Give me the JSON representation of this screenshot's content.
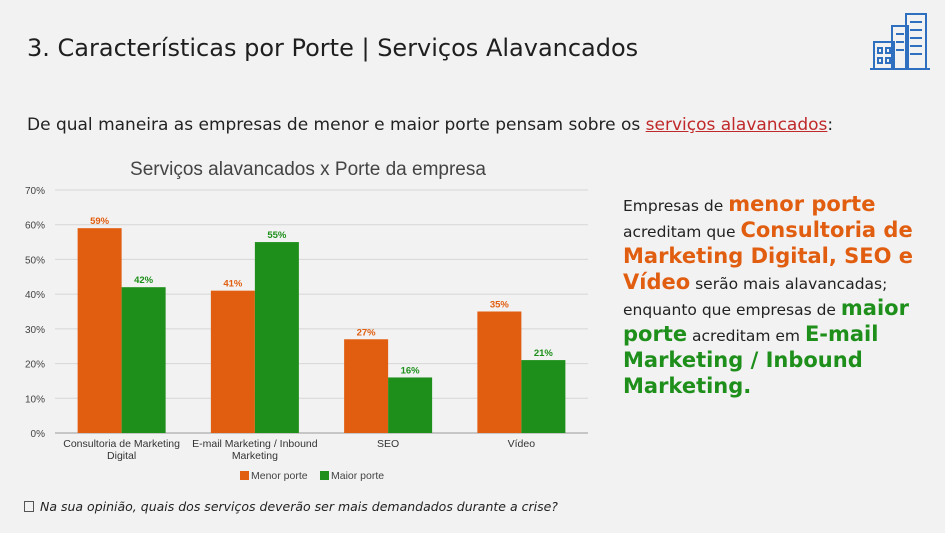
{
  "header": {
    "title": "3. Características por Porte | Serviços Alavancados"
  },
  "question": {
    "prefix": "De qual maneira as empresas de menor e maior porte pensam sobre os ",
    "highlight": "serviços alavancados",
    "suffix": ":"
  },
  "side": {
    "p1": "Empresas de ",
    "h1": "menor porte",
    "p2": " acreditam que ",
    "h2": "Consultoria de Marketing Digital, SEO e Vídeo",
    "p3": " serão mais alavancadas; enquanto que empresas de ",
    "h3": "maior porte",
    "p4": " acreditam em ",
    "h4": "E-mail Marketing / Inbound Marketing."
  },
  "footer": {
    "text": "Na sua opinião, quais dos serviços deverão ser mais demandados durante a crise?"
  },
  "colors": {
    "menor": "#e15d0f",
    "maior": "#1d8f1a",
    "logo": "#2f6fc0"
  },
  "logo": {
    "icon": "buildings-icon"
  },
  "chart_data": {
    "type": "bar",
    "title": "Serviços alavancados x Porte da empresa",
    "categories": [
      [
        "Consultoria de Marketing",
        "Digital"
      ],
      [
        "E-mail Marketing / Inbound",
        "Marketing"
      ],
      [
        "SEO"
      ],
      [
        "Vídeo"
      ]
    ],
    "series": [
      {
        "name": "Menor porte",
        "values": [
          59,
          41,
          27,
          35
        ],
        "labels": [
          "59%",
          "41%",
          "27%",
          "35%"
        ]
      },
      {
        "name": "Maior porte",
        "values": [
          42,
          55,
          16,
          21
        ],
        "labels": [
          "42%",
          "55%",
          "16%",
          "21%"
        ]
      }
    ],
    "yticks": [
      "0%",
      "10%",
      "20%",
      "30%",
      "40%",
      "50%",
      "60%",
      "70%"
    ],
    "ylim": [
      0,
      70
    ],
    "grid": true,
    "legend": "bottom"
  }
}
